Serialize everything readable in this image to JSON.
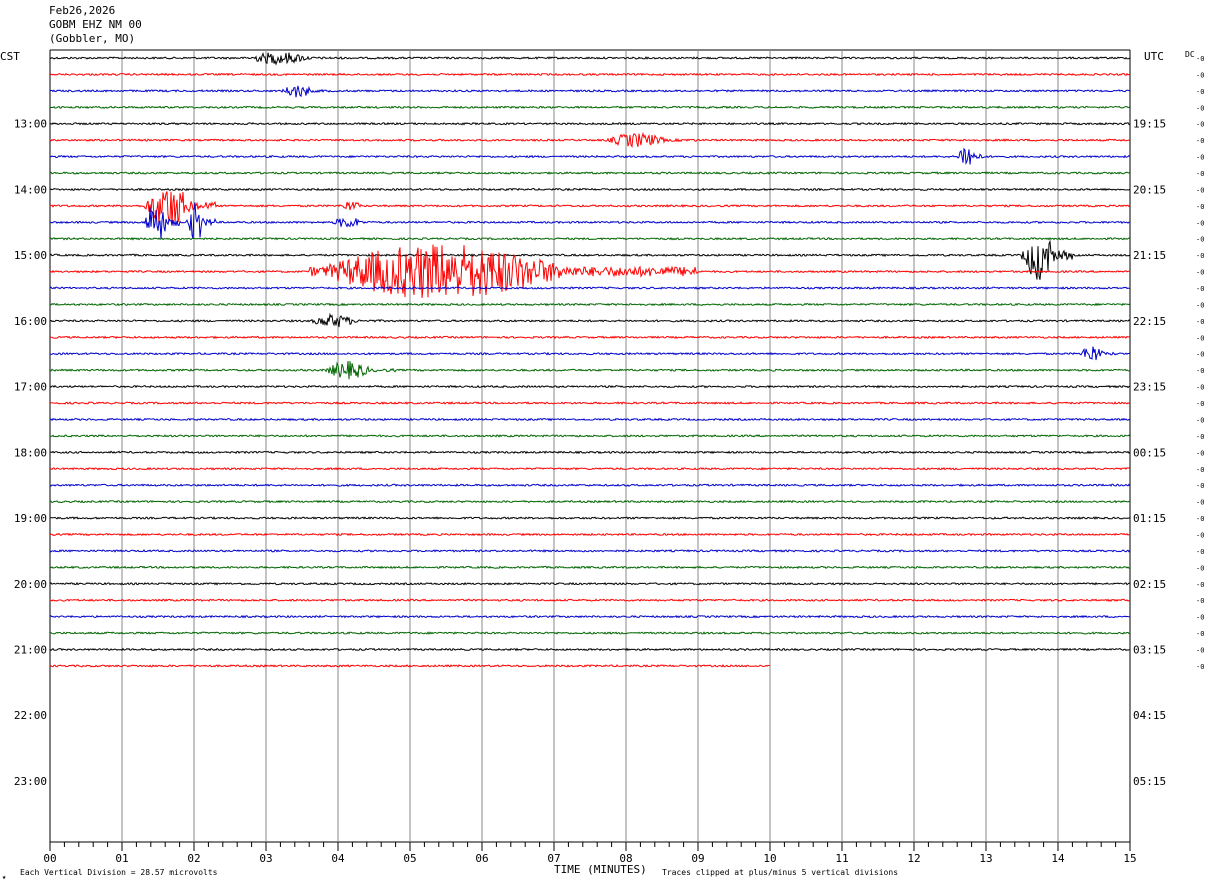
{
  "header": {
    "date": "Feb26,2026",
    "station": "GOBM EHZ NM 00",
    "location": "(Gobbler, MO)"
  },
  "left_zone": "CST",
  "right_zone": "UTC",
  "dc_label": "DC",
  "footer": {
    "vertical_division": "Each Vertical Division =   28.57 microvolts",
    "xaxis_title": "TIME (MINUTES)",
    "clip_note": "Traces clipped at plus/minus 5 vertical divisions"
  },
  "colors": {
    "trace_cycle": [
      "#000000",
      "#ff0000",
      "#0000cc",
      "#006600"
    ],
    "grid": "#888888"
  },
  "chart_data": {
    "type": "line",
    "title": "",
    "xlabel": "TIME (MINUTES)",
    "xlim": [
      0,
      15
    ],
    "x_ticks": [
      "00",
      "01",
      "02",
      "03",
      "04",
      "05",
      "06",
      "07",
      "08",
      "09",
      "10",
      "11",
      "12",
      "13",
      "14",
      "15"
    ],
    "left_hour_labels": [
      "13:00",
      "14:00",
      "15:00",
      "16:00",
      "17:00",
      "18:00",
      "19:00",
      "20:00",
      "21:00",
      "22:00",
      "23:00"
    ],
    "right_hour_labels": [
      "19:15",
      "20:15",
      "21:15",
      "22:15",
      "23:15",
      "00:15",
      "01:15",
      "02:15",
      "03:15",
      "04:15",
      "05:15"
    ],
    "trace_interval_minutes": 15,
    "first_trace_start_cst": "12:00",
    "trace_count": 38,
    "last_trace_end_minute": 10,
    "dc_offsets": [
      "0",
      "0",
      "0",
      "0",
      "0",
      "0",
      "0",
      "0",
      "0",
      "0",
      "0",
      "0",
      "0",
      "0",
      "0",
      "0",
      "0",
      "0",
      "0",
      "0",
      "0",
      "0",
      "0",
      "0",
      "0",
      "0",
      "0",
      "0",
      "0",
      "0",
      "0",
      "0",
      "0",
      "0",
      "0",
      "0",
      "0",
      "0"
    ],
    "events": [
      {
        "trace": 0,
        "start": 2.7,
        "end": 4.1,
        "amplitude": 1.1
      },
      {
        "trace": 2,
        "start": 3.2,
        "end": 3.9,
        "amplitude": 1.2
      },
      {
        "trace": 5,
        "start": 7.7,
        "end": 9.0,
        "amplitude": 1.3
      },
      {
        "trace": 6,
        "start": 12.6,
        "end": 13.0,
        "amplitude": 2.5
      },
      {
        "trace": 9,
        "start": 1.3,
        "end": 2.3,
        "amplitude": 4.0
      },
      {
        "trace": 9,
        "start": 4.0,
        "end": 4.5,
        "amplitude": 0.9
      },
      {
        "trace": 10,
        "start": 1.3,
        "end": 1.8,
        "amplitude": 3.8
      },
      {
        "trace": 10,
        "start": 1.9,
        "end": 2.3,
        "amplitude": 3.6
      },
      {
        "trace": 10,
        "start": 3.9,
        "end": 4.6,
        "amplitude": 1.0
      },
      {
        "trace": 12,
        "start": 13.5,
        "end": 14.2,
        "amplitude": 4.5
      },
      {
        "trace": 13,
        "start": 3.6,
        "end": 9.0,
        "amplitude": 5.0
      },
      {
        "trace": 16,
        "start": 3.6,
        "end": 4.6,
        "amplitude": 1.2
      },
      {
        "trace": 18,
        "start": 14.3,
        "end": 14.8,
        "amplitude": 1.6
      },
      {
        "trace": 19,
        "start": 3.8,
        "end": 4.8,
        "amplitude": 1.6
      }
    ]
  }
}
